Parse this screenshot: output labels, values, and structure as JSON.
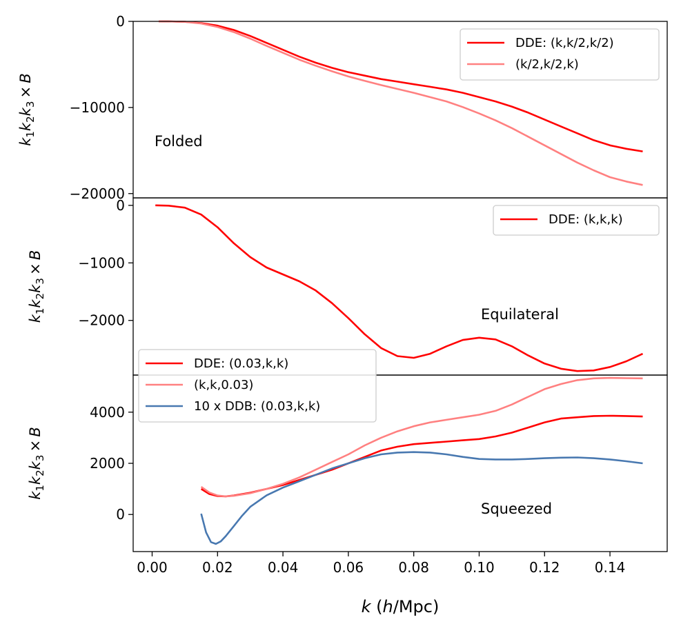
{
  "chart_data": [
    {
      "type": "line",
      "panel": "top",
      "annotation": "Folded",
      "ylabel": "k1 k2 k3 × B",
      "ylim": [
        -20500,
        0
      ],
      "yticks": [
        0,
        -10000,
        -20000
      ],
      "ytick_labels": [
        "0",
        "−10000",
        "−20000"
      ],
      "legend_position": "top-right",
      "series": [
        {
          "name": "DDE: (k,k/2,k/2)",
          "color": "#ff0000",
          "x": [
            0.002,
            0.005,
            0.01,
            0.015,
            0.02,
            0.025,
            0.03,
            0.035,
            0.04,
            0.045,
            0.05,
            0.055,
            0.06,
            0.065,
            0.07,
            0.075,
            0.08,
            0.085,
            0.09,
            0.095,
            0.1,
            0.105,
            0.11,
            0.115,
            0.12,
            0.125,
            0.13,
            0.135,
            0.14,
            0.145,
            0.15
          ],
          "y": [
            0,
            -10,
            -50,
            -200,
            -500,
            -1000,
            -1700,
            -2500,
            -3300,
            -4100,
            -4800,
            -5400,
            -5900,
            -6300,
            -6700,
            -7000,
            -7300,
            -7600,
            -7900,
            -8300,
            -8800,
            -9300,
            -9900,
            -10600,
            -11400,
            -12200,
            -13000,
            -13800,
            -14400,
            -14800,
            -15100
          ]
        },
        {
          "name": "(k/2,k/2,k)",
          "color": "#ff8080",
          "x": [
            0.002,
            0.005,
            0.01,
            0.015,
            0.02,
            0.025,
            0.03,
            0.035,
            0.04,
            0.045,
            0.05,
            0.055,
            0.06,
            0.065,
            0.07,
            0.075,
            0.08,
            0.085,
            0.09,
            0.095,
            0.1,
            0.105,
            0.11,
            0.115,
            0.12,
            0.125,
            0.13,
            0.135,
            0.14,
            0.145,
            0.15
          ],
          "y": [
            0,
            -10,
            -60,
            -250,
            -650,
            -1250,
            -2000,
            -2850,
            -3650,
            -4450,
            -5150,
            -5800,
            -6400,
            -6900,
            -7400,
            -7850,
            -8300,
            -8800,
            -9300,
            -9950,
            -10700,
            -11500,
            -12400,
            -13400,
            -14400,
            -15400,
            -16400,
            -17300,
            -18100,
            -18600,
            -19000
          ]
        }
      ]
    },
    {
      "type": "line",
      "panel": "middle",
      "annotation": "Equilateral",
      "ylabel": "k1 k2 k3 × B",
      "ylim": [
        -2950,
        130
      ],
      "yticks": [
        0,
        -1000,
        -2000
      ],
      "ytick_labels": [
        "0",
        "−1000",
        "−2000"
      ],
      "legend_position": "top-right",
      "series": [
        {
          "name": "DDE: (k,k,k)",
          "color": "#ff0000",
          "x": [
            0.001,
            0.005,
            0.01,
            0.015,
            0.02,
            0.025,
            0.03,
            0.035,
            0.04,
            0.045,
            0.05,
            0.055,
            0.06,
            0.065,
            0.07,
            0.075,
            0.08,
            0.085,
            0.09,
            0.095,
            0.1,
            0.105,
            0.11,
            0.115,
            0.12,
            0.125,
            0.13,
            0.135,
            0.14,
            0.145,
            0.15
          ],
          "y": [
            0,
            -5,
            -40,
            -160,
            -380,
            -660,
            -900,
            -1080,
            -1200,
            -1320,
            -1480,
            -1700,
            -1960,
            -2240,
            -2480,
            -2620,
            -2650,
            -2580,
            -2450,
            -2340,
            -2300,
            -2330,
            -2450,
            -2610,
            -2750,
            -2840,
            -2880,
            -2870,
            -2810,
            -2710,
            -2580
          ]
        }
      ]
    },
    {
      "type": "line",
      "panel": "bottom",
      "annotation": "Squeezed",
      "ylabel": "k1 k2 k3 × B",
      "xlabel": "k (h/Mpc)",
      "xlim": [
        -0.0058,
        0.1575
      ],
      "ylim": [
        -1450,
        5450
      ],
      "yticks": [
        0,
        2000,
        4000
      ],
      "ytick_labels": [
        "0",
        "2000",
        "4000"
      ],
      "xticks": [
        0.0,
        0.02,
        0.04,
        0.06,
        0.08,
        0.1,
        0.12,
        0.14
      ],
      "xtick_labels": [
        "0.00",
        "0.02",
        "0.04",
        "0.06",
        "0.08",
        "0.10",
        "0.12",
        "0.14"
      ],
      "legend_position": "top-left",
      "series": [
        {
          "name": "DDE: (0.03,k,k)",
          "color": "#ff0000",
          "x": [
            0.015,
            0.0175,
            0.02,
            0.0225,
            0.025,
            0.03,
            0.035,
            0.04,
            0.045,
            0.05,
            0.055,
            0.06,
            0.065,
            0.07,
            0.075,
            0.08,
            0.085,
            0.09,
            0.095,
            0.1,
            0.105,
            0.11,
            0.115,
            0.12,
            0.125,
            0.13,
            0.135,
            0.14,
            0.145,
            0.15
          ],
          "y": [
            1000,
            800,
            720,
            710,
            740,
            850,
            1000,
            1150,
            1350,
            1550,
            1750,
            2000,
            2250,
            2500,
            2650,
            2750,
            2800,
            2850,
            2900,
            2950,
            3050,
            3200,
            3400,
            3600,
            3750,
            3800,
            3850,
            3860,
            3850,
            3830
          ]
        },
        {
          "name": "(k,k,0.03)",
          "color": "#ff8080",
          "x": [
            0.015,
            0.0175,
            0.02,
            0.0225,
            0.025,
            0.03,
            0.035,
            0.04,
            0.045,
            0.05,
            0.055,
            0.06,
            0.065,
            0.07,
            0.075,
            0.08,
            0.085,
            0.09,
            0.095,
            0.1,
            0.105,
            0.11,
            0.115,
            0.12,
            0.125,
            0.13,
            0.135,
            0.14,
            0.145,
            0.15
          ],
          "y": [
            1080,
            860,
            740,
            710,
            730,
            830,
            1000,
            1200,
            1450,
            1750,
            2050,
            2350,
            2700,
            3000,
            3250,
            3450,
            3600,
            3700,
            3800,
            3900,
            4050,
            4300,
            4600,
            4900,
            5100,
            5250,
            5320,
            5340,
            5330,
            5320
          ]
        },
        {
          "name": "10 x DDB: (0.03,k,k)",
          "color": "#4878b0",
          "x": [
            0.015,
            0.0165,
            0.018,
            0.0195,
            0.021,
            0.0225,
            0.025,
            0.0275,
            0.03,
            0.035,
            0.04,
            0.045,
            0.05,
            0.055,
            0.06,
            0.065,
            0.07,
            0.075,
            0.08,
            0.085,
            0.09,
            0.095,
            0.1,
            0.105,
            0.11,
            0.115,
            0.12,
            0.125,
            0.13,
            0.135,
            0.14,
            0.145,
            0.15
          ],
          "y": [
            30,
            -700,
            -1080,
            -1150,
            -1050,
            -850,
            -450,
            -50,
            300,
            750,
            1050,
            1300,
            1550,
            1800,
            2000,
            2200,
            2350,
            2420,
            2440,
            2420,
            2350,
            2250,
            2170,
            2150,
            2150,
            2170,
            2200,
            2220,
            2230,
            2200,
            2150,
            2080,
            2000
          ]
        }
      ]
    }
  ]
}
